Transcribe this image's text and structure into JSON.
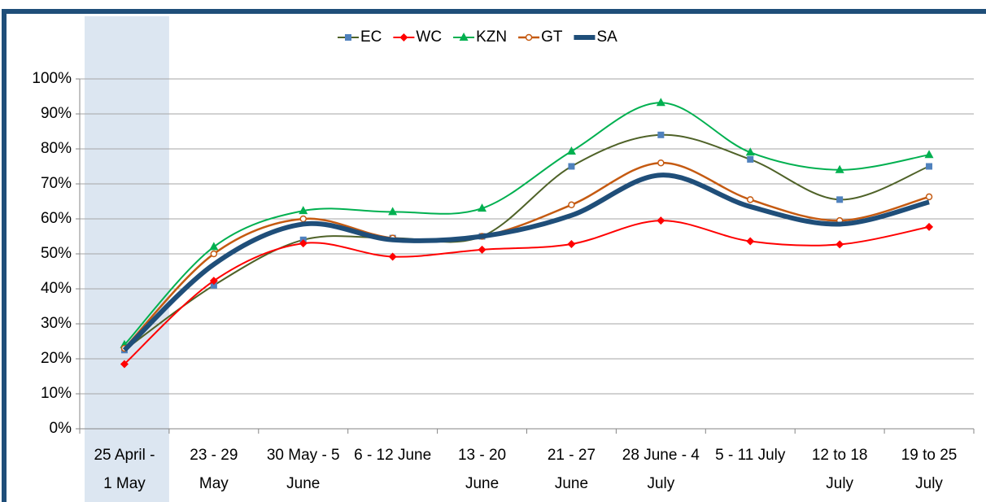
{
  "chart_data": {
    "type": "line",
    "smooth": true,
    "grid": true,
    "legend": "top",
    "categories": [
      [
        "25 April -",
        "1 May"
      ],
      [
        "23 - 29",
        "May"
      ],
      [
        "30 May - 5",
        "June"
      ],
      [
        "6 - 12 June"
      ],
      [
        "13 - 20",
        "June"
      ],
      [
        "21 - 27",
        "June"
      ],
      [
        "28 June - 4",
        "July"
      ],
      [
        "5 - 11 July"
      ],
      [
        "12 to 18",
        "July"
      ],
      [
        "19 to 25",
        "July"
      ]
    ],
    "highlight_categories": [
      0
    ],
    "highlight_color": "#dce6f1",
    "ylim": [
      0,
      100
    ],
    "yticks": [
      {
        "value": 0,
        "label": "0%"
      },
      {
        "value": 10,
        "label": "10%"
      },
      {
        "value": 20,
        "label": "20%"
      },
      {
        "value": 30,
        "label": "30%"
      },
      {
        "value": 40,
        "label": "40%"
      },
      {
        "value": 50,
        "label": "50%"
      },
      {
        "value": 60,
        "label": "60%"
      },
      {
        "value": 70,
        "label": "70%"
      },
      {
        "value": 80,
        "label": "80%"
      },
      {
        "value": 90,
        "label": "90%"
      },
      {
        "value": 100,
        "label": "100%"
      }
    ],
    "series": [
      {
        "name": "EC",
        "color": "#4f6228",
        "marker": "square",
        "marker_color": "#4f81bd",
        "width": 2,
        "values": [
          22.5,
          41,
          54,
          54.5,
          55,
          75,
          84,
          77,
          65.5,
          75
        ]
      },
      {
        "name": "WC",
        "color": "#ff0000",
        "marker": "diamond",
        "marker_color": "#ff0000",
        "width": 2,
        "values": [
          18.5,
          42.3,
          53,
          49.2,
          51.2,
          52.8,
          59.5,
          53.6,
          52.7,
          57.7
        ]
      },
      {
        "name": "KZN",
        "color": "#00b050",
        "marker": "triangle",
        "marker_color": "#00b050",
        "width": 2,
        "values": [
          24,
          52,
          62.3,
          62,
          63,
          79.3,
          93.2,
          79,
          74,
          78.3
        ]
      },
      {
        "name": "GT",
        "color": "#c55a11",
        "marker": "circle",
        "marker_color": "#c55a11",
        "width": 2.5,
        "values": [
          23,
          50,
          60,
          54.5,
          55,
          64,
          76,
          65.5,
          59.5,
          66.3
        ]
      },
      {
        "name": "SA",
        "color": "#1f4e79",
        "marker": "none",
        "marker_color": "#1f4e79",
        "width": 6,
        "values": [
          22.5,
          47,
          58.5,
          54,
          55,
          61,
          72.5,
          63.5,
          58.5,
          64.8
        ]
      }
    ]
  }
}
